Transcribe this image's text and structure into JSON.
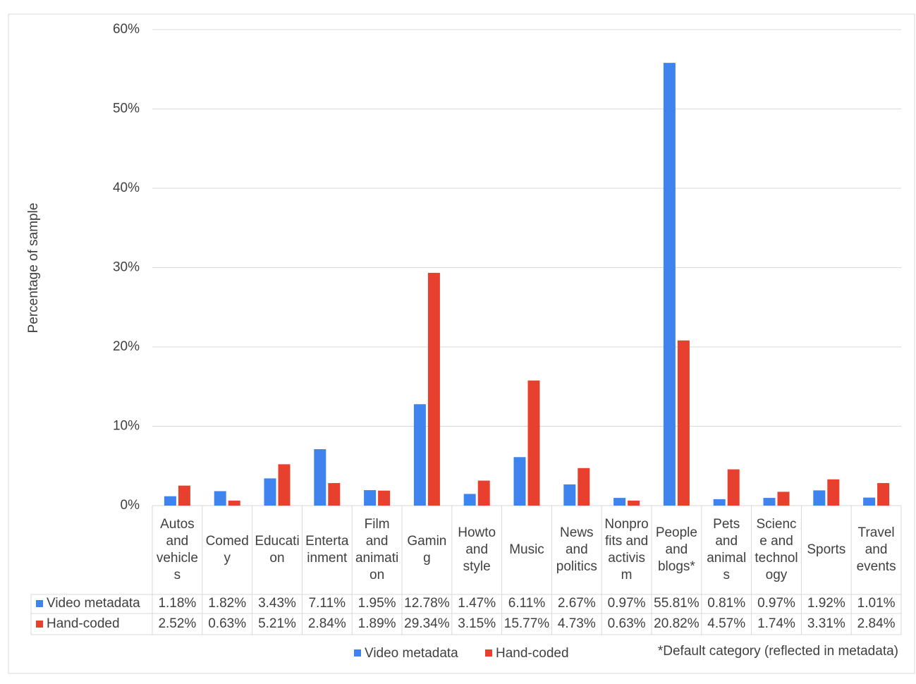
{
  "chart_data": {
    "type": "bar",
    "y_label": "Percentage of sample",
    "categories": [
      "Autos and vehicles",
      "Comedy",
      "Education",
      "Entertainment",
      "Film and animation",
      "Gaming",
      "Howto and style",
      "Music",
      "News and politics",
      "Nonprofits and activism",
      "People and blogs*",
      "Pets and animals",
      "Science and technology",
      "Sports",
      "Travel and events"
    ],
    "series": [
      {
        "name": "Video metadata",
        "color": "#3f84ee",
        "values": [
          1.18,
          1.82,
          3.43,
          7.11,
          1.95,
          12.78,
          1.47,
          6.11,
          2.67,
          0.97,
          55.81,
          0.81,
          0.97,
          1.92,
          1.01
        ],
        "value_labels": [
          "1.18%",
          "1.82%",
          "3.43%",
          "7.11%",
          "1.95%",
          "12.78%",
          "1.47%",
          "6.11%",
          "2.67%",
          "0.97%",
          "55.81%",
          "0.81%",
          "0.97%",
          "1.92%",
          "1.01%"
        ]
      },
      {
        "name": "Hand-coded",
        "color": "#e8402f",
        "values": [
          2.52,
          0.63,
          5.21,
          2.84,
          1.89,
          29.34,
          3.15,
          15.77,
          4.73,
          0.63,
          20.82,
          4.57,
          1.74,
          3.31,
          2.84
        ],
        "value_labels": [
          "2.52%",
          "0.63%",
          "5.21%",
          "2.84%",
          "1.89%",
          "29.34%",
          "3.15%",
          "15.77%",
          "4.73%",
          "0.63%",
          "20.82%",
          "4.57%",
          "1.74%",
          "3.31%",
          "2.84%"
        ]
      }
    ],
    "ylim": [
      0,
      60
    ],
    "yticks": [
      {
        "value": 0,
        "label": "0%"
      },
      {
        "value": 10,
        "label": "10%"
      },
      {
        "value": 20,
        "label": "20%"
      },
      {
        "value": 30,
        "label": "30%"
      },
      {
        "value": 40,
        "label": "40%"
      },
      {
        "value": 50,
        "label": "50%"
      },
      {
        "value": 60,
        "label": "60%"
      }
    ],
    "grid": true,
    "note": "*Default category (reflected in metadata)"
  }
}
